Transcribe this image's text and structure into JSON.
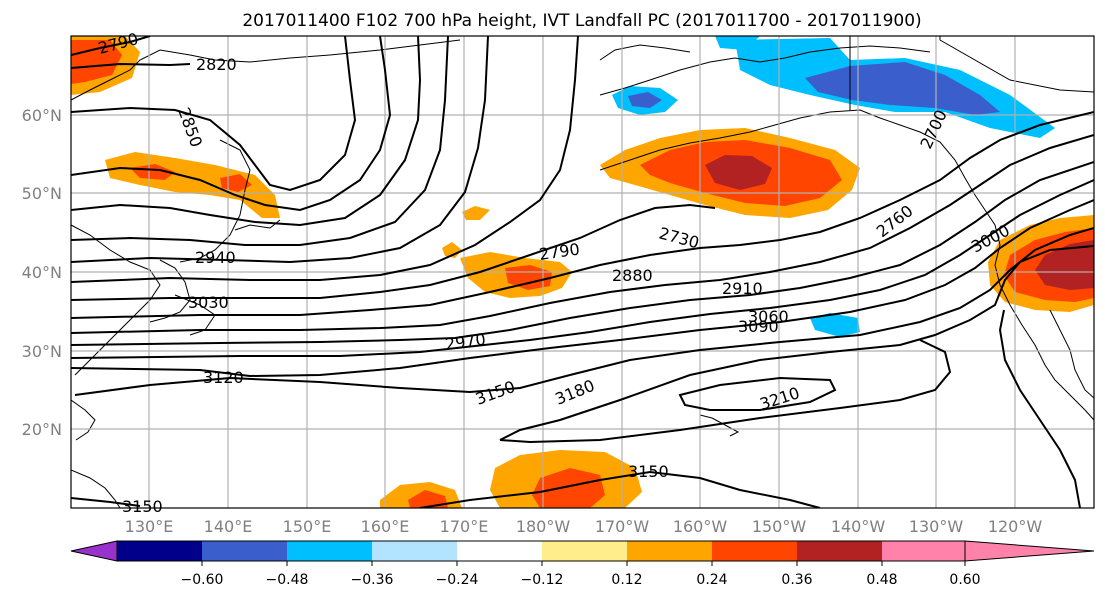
{
  "title": "2017011400 F102 700 hPa height, IVT Landfall PC (2017011700 - 2017011900)",
  "map": {
    "lat_labels": [
      "60°N",
      "50°N",
      "40°N",
      "30°N",
      "20°N"
    ],
    "lon_labels": [
      "130°E",
      "140°E",
      "150°E",
      "160°E",
      "170°E",
      "180°W",
      "170°W",
      "160°W",
      "150°W",
      "140°W",
      "130°W",
      "120°W"
    ],
    "contour_labels": [
      "2790",
      "2820",
      "2850",
      "2940",
      "3030",
      "3120",
      "2790",
      "2730",
      "2880",
      "2910",
      "2970",
      "3060",
      "3090",
      "2760",
      "3000",
      "3150",
      "3180",
      "3210",
      "3150",
      "3150",
      "2700"
    ],
    "colors": {
      "neg_060": "#9932cc",
      "neg_048": "#00008b",
      "neg_036": "#3a5fcd",
      "neg_024": "#00bfff",
      "neg_012": "#b2e4ff",
      "neutral": "#ffffff",
      "pos_012": "#ffec8b",
      "pos_024": "#ffa500",
      "pos_036": "#ff4500",
      "pos_048": "#b22222",
      "pos_060": "#ff82ab"
    }
  },
  "colorbar": {
    "tick_labels": [
      "−0.60",
      "−0.48",
      "−0.36",
      "−0.24",
      "−0.12",
      "0.12",
      "0.24",
      "0.36",
      "0.48",
      "0.60"
    ],
    "bins": [
      "#9932cc",
      "#00008b",
      "#3a5fcd",
      "#00bfff",
      "#b2e4ff",
      "#ffffff",
      "#ffec8b",
      "#ffa500",
      "#ff4500",
      "#b22222",
      "#ff82ab"
    ]
  }
}
